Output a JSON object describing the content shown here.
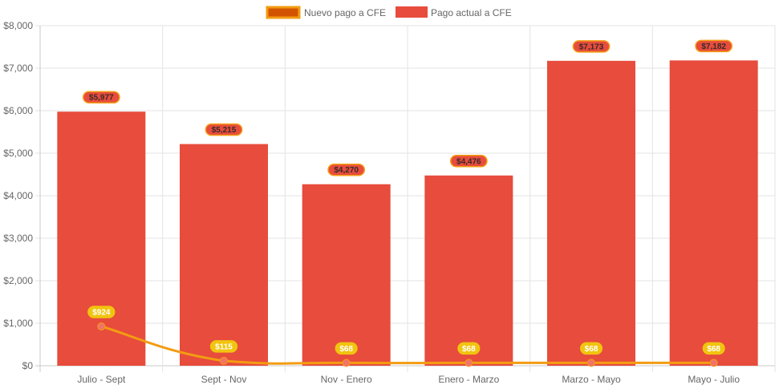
{
  "chart_data": {
    "type": "bar",
    "title": "",
    "xlabel": "",
    "ylabel": "",
    "ylim": [
      0,
      8000
    ],
    "yticks": [
      "$0",
      "$1,000",
      "$2,000",
      "$3,000",
      "$4,000",
      "$5,000",
      "$6,000",
      "$7,000",
      "$8,000"
    ],
    "grid": true,
    "legend_position": "top",
    "categories": [
      "Julio - Sept",
      "Sept - Nov",
      "Nov - Enero",
      "Enero - Marzo",
      "Marzo - Mayo",
      "Mayo - Julio"
    ],
    "series": [
      {
        "name": "Nuevo pago a CFE",
        "type": "line",
        "values": [
          924,
          115,
          68,
          68,
          68,
          68
        ],
        "labels": [
          "$924",
          "$115",
          "$68",
          "$68",
          "$68",
          "$68"
        ],
        "color": "#f39c12",
        "fill": "#d35400"
      },
      {
        "name": "Pago actual a CFE",
        "type": "bar",
        "values": [
          5977,
          5215,
          4270,
          4476,
          7173,
          7182
        ],
        "labels": [
          "$5,977",
          "$5,215",
          "$4,270",
          "$4,476",
          "$7,173",
          "$7,182"
        ],
        "color": "#e74c3c"
      }
    ]
  }
}
